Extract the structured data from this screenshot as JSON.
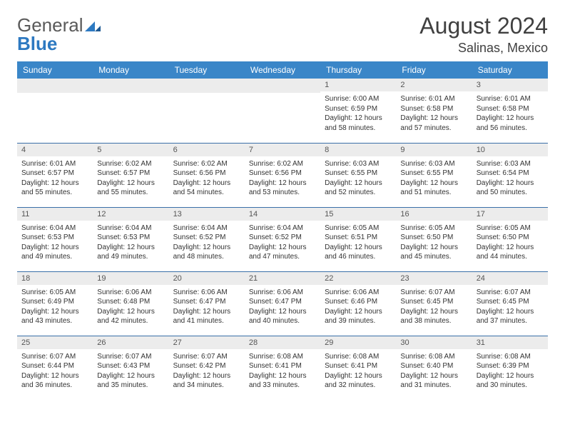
{
  "logo": {
    "word1": "General",
    "word2": "Blue"
  },
  "title": "August 2024",
  "location": "Salinas, Mexico",
  "header_bg": "#3a86c8",
  "header_text": "#ffffff",
  "daybar_bg": "#ececec",
  "row_border": "#3a6fa8",
  "daynames": [
    "Sunday",
    "Monday",
    "Tuesday",
    "Wednesday",
    "Thursday",
    "Friday",
    "Saturday"
  ],
  "weeks": [
    [
      {
        "n": "",
        "sr": "",
        "ss": "",
        "dl": ""
      },
      {
        "n": "",
        "sr": "",
        "ss": "",
        "dl": ""
      },
      {
        "n": "",
        "sr": "",
        "ss": "",
        "dl": ""
      },
      {
        "n": "",
        "sr": "",
        "ss": "",
        "dl": ""
      },
      {
        "n": "1",
        "sr": "Sunrise: 6:00 AM",
        "ss": "Sunset: 6:59 PM",
        "dl": "Daylight: 12 hours and 58 minutes."
      },
      {
        "n": "2",
        "sr": "Sunrise: 6:01 AM",
        "ss": "Sunset: 6:58 PM",
        "dl": "Daylight: 12 hours and 57 minutes."
      },
      {
        "n": "3",
        "sr": "Sunrise: 6:01 AM",
        "ss": "Sunset: 6:58 PM",
        "dl": "Daylight: 12 hours and 56 minutes."
      }
    ],
    [
      {
        "n": "4",
        "sr": "Sunrise: 6:01 AM",
        "ss": "Sunset: 6:57 PM",
        "dl": "Daylight: 12 hours and 55 minutes."
      },
      {
        "n": "5",
        "sr": "Sunrise: 6:02 AM",
        "ss": "Sunset: 6:57 PM",
        "dl": "Daylight: 12 hours and 55 minutes."
      },
      {
        "n": "6",
        "sr": "Sunrise: 6:02 AM",
        "ss": "Sunset: 6:56 PM",
        "dl": "Daylight: 12 hours and 54 minutes."
      },
      {
        "n": "7",
        "sr": "Sunrise: 6:02 AM",
        "ss": "Sunset: 6:56 PM",
        "dl": "Daylight: 12 hours and 53 minutes."
      },
      {
        "n": "8",
        "sr": "Sunrise: 6:03 AM",
        "ss": "Sunset: 6:55 PM",
        "dl": "Daylight: 12 hours and 52 minutes."
      },
      {
        "n": "9",
        "sr": "Sunrise: 6:03 AM",
        "ss": "Sunset: 6:55 PM",
        "dl": "Daylight: 12 hours and 51 minutes."
      },
      {
        "n": "10",
        "sr": "Sunrise: 6:03 AM",
        "ss": "Sunset: 6:54 PM",
        "dl": "Daylight: 12 hours and 50 minutes."
      }
    ],
    [
      {
        "n": "11",
        "sr": "Sunrise: 6:04 AM",
        "ss": "Sunset: 6:53 PM",
        "dl": "Daylight: 12 hours and 49 minutes."
      },
      {
        "n": "12",
        "sr": "Sunrise: 6:04 AM",
        "ss": "Sunset: 6:53 PM",
        "dl": "Daylight: 12 hours and 49 minutes."
      },
      {
        "n": "13",
        "sr": "Sunrise: 6:04 AM",
        "ss": "Sunset: 6:52 PM",
        "dl": "Daylight: 12 hours and 48 minutes."
      },
      {
        "n": "14",
        "sr": "Sunrise: 6:04 AM",
        "ss": "Sunset: 6:52 PM",
        "dl": "Daylight: 12 hours and 47 minutes."
      },
      {
        "n": "15",
        "sr": "Sunrise: 6:05 AM",
        "ss": "Sunset: 6:51 PM",
        "dl": "Daylight: 12 hours and 46 minutes."
      },
      {
        "n": "16",
        "sr": "Sunrise: 6:05 AM",
        "ss": "Sunset: 6:50 PM",
        "dl": "Daylight: 12 hours and 45 minutes."
      },
      {
        "n": "17",
        "sr": "Sunrise: 6:05 AM",
        "ss": "Sunset: 6:50 PM",
        "dl": "Daylight: 12 hours and 44 minutes."
      }
    ],
    [
      {
        "n": "18",
        "sr": "Sunrise: 6:05 AM",
        "ss": "Sunset: 6:49 PM",
        "dl": "Daylight: 12 hours and 43 minutes."
      },
      {
        "n": "19",
        "sr": "Sunrise: 6:06 AM",
        "ss": "Sunset: 6:48 PM",
        "dl": "Daylight: 12 hours and 42 minutes."
      },
      {
        "n": "20",
        "sr": "Sunrise: 6:06 AM",
        "ss": "Sunset: 6:47 PM",
        "dl": "Daylight: 12 hours and 41 minutes."
      },
      {
        "n": "21",
        "sr": "Sunrise: 6:06 AM",
        "ss": "Sunset: 6:47 PM",
        "dl": "Daylight: 12 hours and 40 minutes."
      },
      {
        "n": "22",
        "sr": "Sunrise: 6:06 AM",
        "ss": "Sunset: 6:46 PM",
        "dl": "Daylight: 12 hours and 39 minutes."
      },
      {
        "n": "23",
        "sr": "Sunrise: 6:07 AM",
        "ss": "Sunset: 6:45 PM",
        "dl": "Daylight: 12 hours and 38 minutes."
      },
      {
        "n": "24",
        "sr": "Sunrise: 6:07 AM",
        "ss": "Sunset: 6:45 PM",
        "dl": "Daylight: 12 hours and 37 minutes."
      }
    ],
    [
      {
        "n": "25",
        "sr": "Sunrise: 6:07 AM",
        "ss": "Sunset: 6:44 PM",
        "dl": "Daylight: 12 hours and 36 minutes."
      },
      {
        "n": "26",
        "sr": "Sunrise: 6:07 AM",
        "ss": "Sunset: 6:43 PM",
        "dl": "Daylight: 12 hours and 35 minutes."
      },
      {
        "n": "27",
        "sr": "Sunrise: 6:07 AM",
        "ss": "Sunset: 6:42 PM",
        "dl": "Daylight: 12 hours and 34 minutes."
      },
      {
        "n": "28",
        "sr": "Sunrise: 6:08 AM",
        "ss": "Sunset: 6:41 PM",
        "dl": "Daylight: 12 hours and 33 minutes."
      },
      {
        "n": "29",
        "sr": "Sunrise: 6:08 AM",
        "ss": "Sunset: 6:41 PM",
        "dl": "Daylight: 12 hours and 32 minutes."
      },
      {
        "n": "30",
        "sr": "Sunrise: 6:08 AM",
        "ss": "Sunset: 6:40 PM",
        "dl": "Daylight: 12 hours and 31 minutes."
      },
      {
        "n": "31",
        "sr": "Sunrise: 6:08 AM",
        "ss": "Sunset: 6:39 PM",
        "dl": "Daylight: 12 hours and 30 minutes."
      }
    ]
  ]
}
